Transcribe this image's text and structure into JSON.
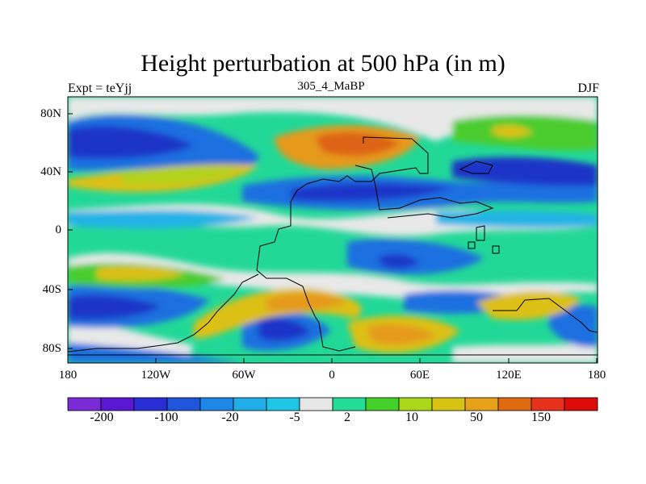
{
  "title": "Height perturbation at 500 hPa (in m)",
  "subtitle_left": "Expt = teYjj",
  "subtitle_center": "305_4_MaBP",
  "subtitle_right": "DJF",
  "lat_labels": [
    "80N",
    "40N",
    "0",
    "40S",
    "80S"
  ],
  "lon_labels": [
    "180",
    "120W",
    "60W",
    "0",
    "60E",
    "120E",
    "180"
  ],
  "colorbar": {
    "labels": [
      "-200",
      "-100",
      "-20",
      "-5",
      "2",
      "10",
      "50",
      "150"
    ],
    "colors": [
      "#7b2bd6",
      "#5a18d2",
      "#2a2ed4",
      "#1f55d8",
      "#1e86e6",
      "#21aee8",
      "#1fc6e6",
      "#e6e6e6",
      "#22dc98",
      "#44d02a",
      "#a8d818",
      "#d7c314",
      "#e6a31a",
      "#e06a12",
      "#e6321a",
      "#dc0c0c"
    ]
  },
  "palette": {
    "gray": "#e8e8e8",
    "strong_neg": "#1f35c8",
    "neg": "#1f6fe0",
    "weak_neg": "#23b4e6",
    "weak_pos": "#22d898",
    "green": "#4ccc2e",
    "yellowgreen": "#b2d21a",
    "yellow": "#dcc016",
    "orange": "#e59a1a",
    "darkorange": "#dd6412"
  }
}
